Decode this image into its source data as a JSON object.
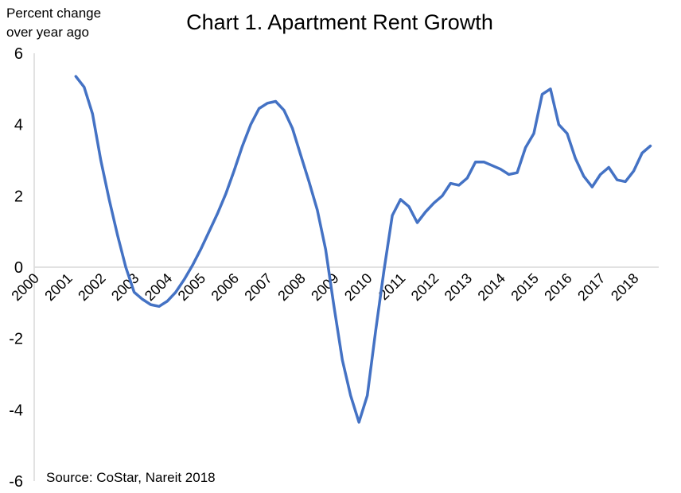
{
  "chart_data": {
    "type": "line",
    "title": "Chart 1. Apartment Rent Growth",
    "ylabel": "Percent change over year ago",
    "ylabel_lines": [
      "Percent change",
      "over year ago"
    ],
    "xlabel": "",
    "source": "Source: CoStar, Nareit 2018",
    "ylim": [
      -6,
      6
    ],
    "yticks": [
      6,
      4,
      2,
      0,
      -2,
      -4,
      -6
    ],
    "ytick_labels": [
      "6",
      "4",
      "2",
      "0",
      "-2",
      "-4",
      "-6"
    ],
    "xlim": [
      2000,
      2018.75
    ],
    "xticks": [
      2000,
      2001,
      2002,
      2003,
      2004,
      2005,
      2006,
      2007,
      2008,
      2009,
      2010,
      2011,
      2012,
      2013,
      2014,
      2015,
      2016,
      2017,
      2018
    ],
    "xtick_labels": [
      "2000",
      "2001",
      "2002",
      "2003",
      "2004",
      "2005",
      "2006",
      "2007",
      "2008",
      "2009",
      "2010",
      "2011",
      "2012",
      "2013",
      "2014",
      "2015",
      "2016",
      "2017",
      "2018"
    ],
    "grid": false,
    "legend": "none",
    "line_color": "#4472C4",
    "series": [
      {
        "x": [
          2001.25,
          2001.5,
          2001.75,
          2002.0,
          2002.25,
          2002.5,
          2002.75,
          2003.0,
          2003.25,
          2003.5,
          2003.75,
          2004.0,
          2004.25,
          2004.5,
          2004.75,
          2005.0,
          2005.25,
          2005.5,
          2005.75,
          2006.0,
          2006.25,
          2006.5,
          2006.75,
          2007.0,
          2007.25,
          2007.5,
          2007.75,
          2008.0,
          2008.25,
          2008.5,
          2008.75,
          2009.0,
          2009.25,
          2009.5,
          2009.75,
          2010.0,
          2010.25,
          2010.5,
          2010.75,
          2011.0,
          2011.25,
          2011.5,
          2011.75,
          2012.0,
          2012.25,
          2012.5,
          2012.75,
          2013.0,
          2013.25,
          2013.5,
          2013.75,
          2014.0,
          2014.25,
          2014.5,
          2014.75,
          2015.0,
          2015.25,
          2015.5,
          2015.75,
          2016.0,
          2016.25,
          2016.5,
          2016.75,
          2017.0,
          2017.25,
          2017.5,
          2017.75,
          2018.0,
          2018.25,
          2018.5
        ],
        "y": [
          5.35,
          5.05,
          4.3,
          3.0,
          1.9,
          0.9,
          0.0,
          -0.7,
          -0.9,
          -1.05,
          -1.1,
          -0.95,
          -0.7,
          -0.35,
          0.05,
          0.5,
          1.0,
          1.5,
          2.05,
          2.7,
          3.4,
          4.0,
          4.45,
          4.6,
          4.65,
          4.4,
          3.9,
          3.15,
          2.4,
          1.6,
          0.5,
          -1.1,
          -2.6,
          -3.6,
          -4.35,
          -3.6,
          -1.8,
          -0.1,
          1.45,
          1.9,
          1.7,
          1.25,
          1.55,
          1.8,
          2.0,
          2.35,
          2.3,
          2.5,
          2.95,
          2.95,
          2.85,
          2.75,
          2.6,
          2.65,
          3.35,
          3.75,
          4.85,
          5.0,
          4.0,
          3.75,
          3.05,
          2.55,
          2.25,
          2.6,
          2.8,
          2.45,
          2.4,
          2.7,
          3.2,
          3.4
        ]
      }
    ]
  }
}
